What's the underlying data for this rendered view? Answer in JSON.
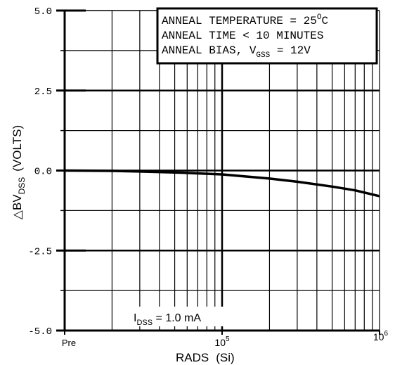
{
  "chart_data": {
    "type": "line",
    "xlabel": "RADS",
    "xlabel_unit": "(Si)",
    "ylabel_prefix": "△BV",
    "ylabel_sub": "DSS",
    "ylabel_unit": "(VOLTS)",
    "xscale": "log",
    "xlim": [
      10000,
      1000000
    ],
    "ylim": [
      -5.0,
      5.0
    ],
    "grid": true,
    "y_ticks": [
      {
        "value": 5.0,
        "label": "5.0"
      },
      {
        "value": 2.5,
        "label": "2.5"
      },
      {
        "value": 0.0,
        "label": "0.0"
      },
      {
        "value": -2.5,
        "label": "-2.5"
      },
      {
        "value": -5.0,
        "label": "-5.0"
      }
    ],
    "x_ticks": [
      {
        "value": 10000,
        "label": "Pre"
      },
      {
        "value": 100000,
        "base": "10",
        "exp": "5"
      },
      {
        "value": 1000000,
        "base": "10",
        "exp": "6"
      }
    ],
    "series": [
      {
        "points": [
          {
            "x": 10000,
            "y": 0.0
          },
          {
            "x": 20000,
            "y": -0.01
          },
          {
            "x": 30000,
            "y": -0.03
          },
          {
            "x": 50000,
            "y": -0.06
          },
          {
            "x": 100000,
            "y": -0.12
          },
          {
            "x": 200000,
            "y": -0.25
          },
          {
            "x": 300000,
            "y": -0.35
          },
          {
            "x": 500000,
            "y": -0.5
          },
          {
            "x": 700000,
            "y": -0.62
          },
          {
            "x": 1000000,
            "y": -0.8
          }
        ]
      }
    ],
    "annotation_box": {
      "lines": [
        {
          "text": "ANNEAL TEMPERATURE = 25",
          "sup": "O",
          "tail": "C"
        },
        {
          "text": "ANNEAL TIME < 10 MINUTES"
        },
        {
          "text": "ANNEAL BIAS, V",
          "sub": "GSS",
          "tail": " = 12V"
        }
      ]
    },
    "condition_label": {
      "prefix": "I",
      "sub": "DSS",
      "tail": " = 1.0 mA"
    }
  }
}
